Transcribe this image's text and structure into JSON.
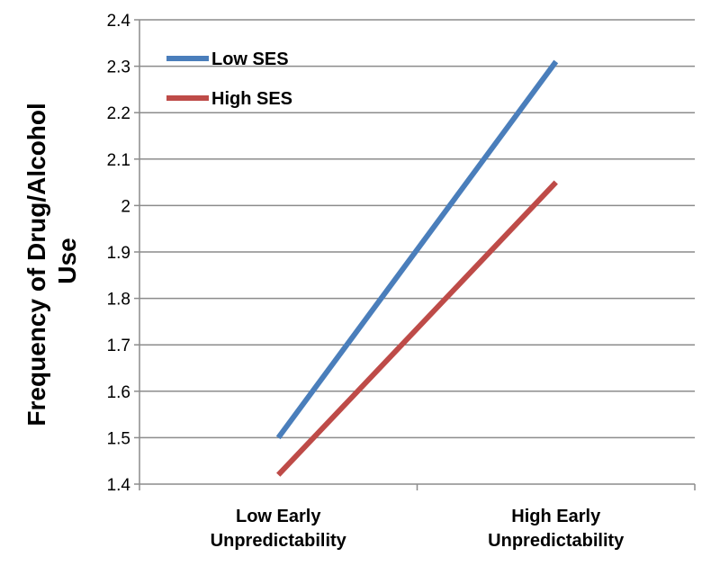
{
  "chart_data": {
    "type": "line",
    "title": "",
    "xlabel": "",
    "ylabel": [
      "Frequency of Drug/Alcohol",
      "Use"
    ],
    "categories": [
      [
        "Low Early",
        "Unpredictability"
      ],
      [
        "High Early",
        "Unpredictability"
      ]
    ],
    "ylim": [
      1.4,
      2.4
    ],
    "yticks": [
      "1.4",
      "1.5",
      "1.6",
      "1.7",
      "1.8",
      "1.9",
      "2",
      "2.1",
      "2.2",
      "2.3",
      "2.4"
    ],
    "grid": true,
    "legend_position": "top-left",
    "series": [
      {
        "name": "Low SES",
        "color": "#4a7ebb",
        "values": [
          1.5,
          2.31
        ]
      },
      {
        "name": "High SES",
        "color": "#be4b48",
        "values": [
          1.42,
          2.05
        ]
      }
    ]
  }
}
